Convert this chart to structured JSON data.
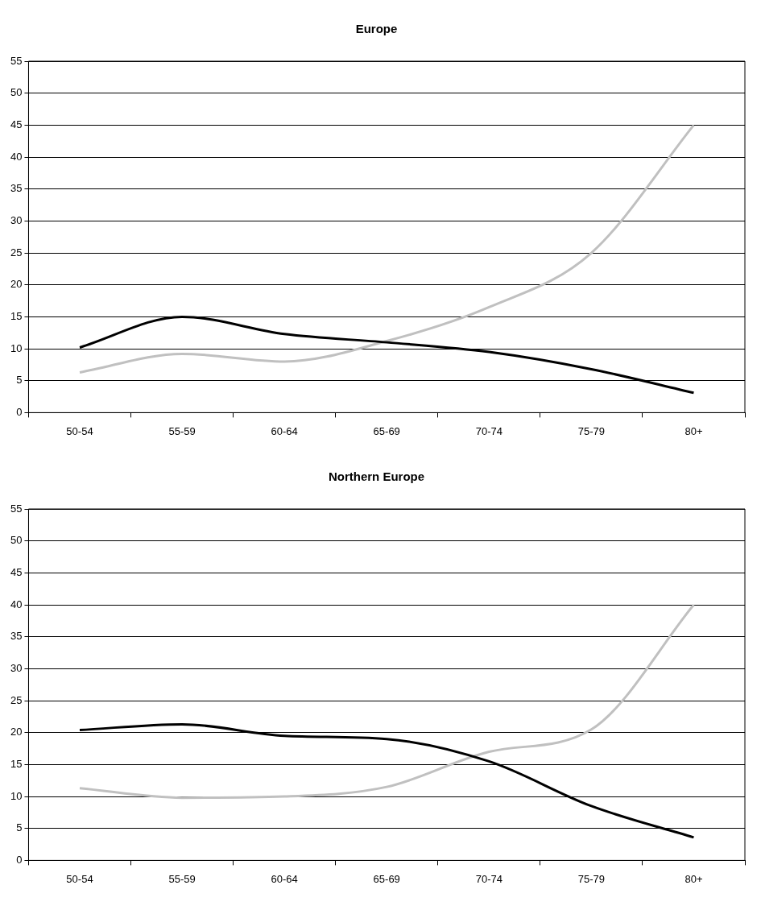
{
  "chart_data": [
    {
      "type": "line",
      "title": "Europe",
      "categories": [
        "50-54",
        "55-59",
        "60-64",
        "65-69",
        "70-74",
        "75-79",
        "80+"
      ],
      "series": [
        {
          "color": "#000000",
          "values": [
            10.2,
            15,
            12.3,
            11,
            9.5,
            6.8,
            3.1
          ]
        },
        {
          "color": "#c0c0c0",
          "values": [
            6.3,
            9.2,
            8,
            11.2,
            16.5,
            25,
            45
          ]
        }
      ],
      "ylim": [
        0,
        55
      ],
      "yticks": [
        0,
        5,
        10,
        15,
        20,
        25,
        30,
        35,
        40,
        45,
        50,
        55
      ],
      "grid": "y",
      "legend": false
    },
    {
      "type": "line",
      "title": "Northern Europe",
      "categories": [
        "50-54",
        "55-59",
        "60-64",
        "65-69",
        "70-74",
        "75-79",
        "80+"
      ],
      "series": [
        {
          "color": "#000000",
          "values": [
            20.4,
            21.3,
            19.5,
            19,
            15.5,
            8.5,
            3.6
          ]
        },
        {
          "color": "#c0c0c0",
          "values": [
            11.3,
            9.8,
            10,
            11.5,
            17,
            20.5,
            40
          ]
        }
      ],
      "ylim": [
        0,
        55
      ],
      "yticks": [
        0,
        5,
        10,
        15,
        20,
        25,
        30,
        35,
        40,
        45,
        50,
        55
      ],
      "grid": "y",
      "legend": false
    }
  ]
}
